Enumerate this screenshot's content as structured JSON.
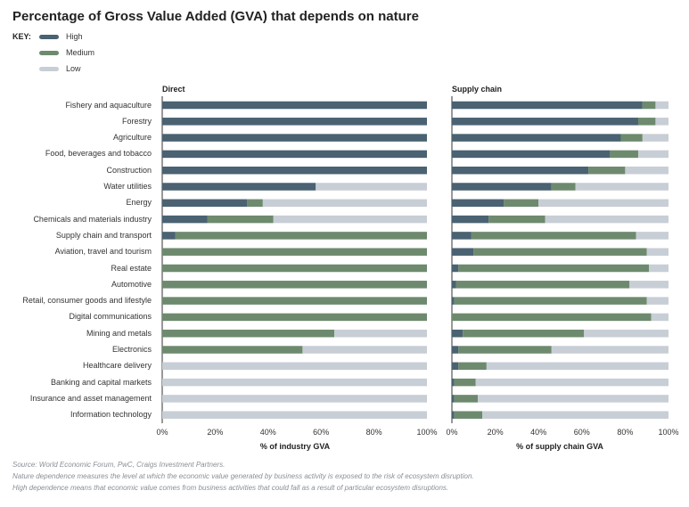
{
  "title": "Percentage of Gross Value Added (GVA) that depends on nature",
  "key": {
    "label": "KEY:",
    "items": [
      {
        "name": "High",
        "color": "#4a6272"
      },
      {
        "name": "Medium",
        "color": "#6e8a6e"
      },
      {
        "name": "Low",
        "color": "#c8ced5"
      }
    ]
  },
  "chart_data": [
    {
      "type": "bar",
      "orientation": "horizontal",
      "stacked": true,
      "panel_title": "Direct",
      "xlabel": "% of industry GVA",
      "xlim": [
        0,
        100
      ],
      "x_ticks": [
        "0%",
        "20%",
        "40%",
        "60%",
        "80%",
        "100%"
      ],
      "categories": [
        "Fishery and aquaculture",
        "Forestry",
        "Agriculture",
        "Food, beverages and tobacco",
        "Construction",
        "Water utilities",
        "Energy",
        "Chemicals and materials industry",
        "Supply chain and transport",
        "Aviation, travel and tourism",
        "Real estate",
        "Automotive",
        "Retail, consumer goods and lifestyle",
        "Digital communications",
        "Mining and metals",
        "Electronics",
        "Healthcare delivery",
        "Banking and capital markets",
        "Insurance and asset management",
        "Information technology"
      ],
      "series": [
        {
          "name": "High",
          "values": [
            100,
            100,
            100,
            100,
            100,
            58,
            32,
            17,
            5,
            0,
            0,
            0,
            0,
            0,
            0,
            0,
            0,
            0,
            0,
            0
          ]
        },
        {
          "name": "Medium",
          "values": [
            0,
            0,
            0,
            0,
            0,
            0,
            6,
            25,
            95,
            100,
            100,
            100,
            100,
            100,
            65,
            53,
            0,
            0,
            0,
            0
          ]
        },
        {
          "name": "Low",
          "values": [
            0,
            0,
            0,
            0,
            0,
            42,
            62,
            58,
            0,
            0,
            0,
            0,
            0,
            0,
            35,
            47,
            100,
            100,
            100,
            100
          ]
        }
      ]
    },
    {
      "type": "bar",
      "orientation": "horizontal",
      "stacked": true,
      "panel_title": "Supply chain",
      "xlabel": "% of supply chain GVA",
      "xlim": [
        0,
        100
      ],
      "x_ticks": [
        "0%",
        "20%",
        "40%",
        "60%",
        "80%",
        "100%"
      ],
      "categories": [
        "Fishery and aquaculture",
        "Forestry",
        "Agriculture",
        "Food, beverages and tobacco",
        "Construction",
        "Water utilities",
        "Energy",
        "Chemicals and materials industry",
        "Supply chain and transport",
        "Aviation, travel and tourism",
        "Real estate",
        "Automotive",
        "Retail, consumer goods and lifestyle",
        "Digital communications",
        "Mining and metals",
        "Electronics",
        "Healthcare delivery",
        "Banking and capital markets",
        "Insurance and asset management",
        "Information technology"
      ],
      "series": [
        {
          "name": "High",
          "values": [
            88,
            86,
            78,
            73,
            63,
            46,
            24,
            17,
            9,
            10,
            3,
            2,
            1,
            0,
            5,
            3,
            3,
            1,
            1,
            1
          ]
        },
        {
          "name": "Medium",
          "values": [
            6,
            8,
            10,
            13,
            17,
            11,
            16,
            26,
            76,
            80,
            88,
            80,
            89,
            92,
            56,
            43,
            13,
            10,
            11,
            13
          ]
        },
        {
          "name": "Low",
          "values": [
            6,
            6,
            12,
            14,
            20,
            43,
            60,
            57,
            15,
            10,
            9,
            18,
            10,
            8,
            39,
            54,
            84,
            89,
            88,
            86
          ]
        }
      ]
    }
  ],
  "footnotes": [
    "Source: World Economic Forum, PwC, Craigs Investment Partners.",
    "Nature dependence measures the level at which the economic value generated by business activity is exposed to the risk of ecosystem disruption.",
    "High dependence means that economic value comes from business activities that could fall as a result of particular ecosystem disruptions."
  ]
}
